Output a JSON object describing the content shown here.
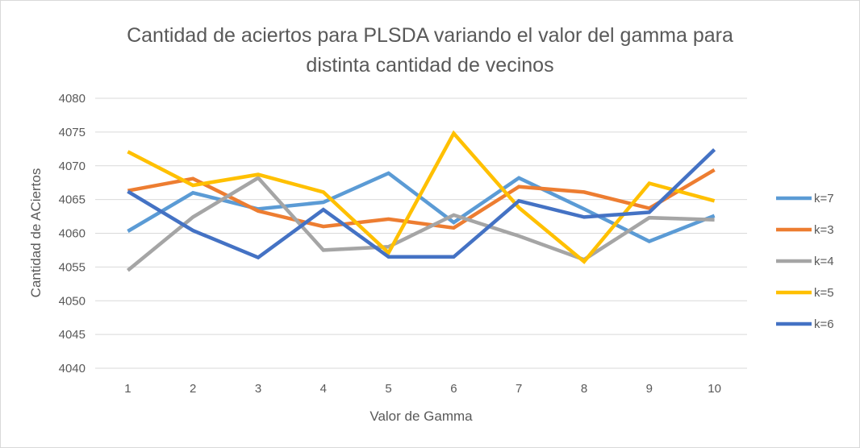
{
  "chart_data": {
    "type": "line",
    "title_line1": "Cantidad de aciertos para PLSDA variando el valor del gamma para",
    "title_line2": "distinta cantidad de vecinos",
    "xlabel": "Valor de Gamma",
    "ylabel": "Cantidad de ACiertos",
    "x": [
      1,
      2,
      3,
      4,
      5,
      6,
      7,
      8,
      9,
      10
    ],
    "ylim": [
      4040,
      4080
    ],
    "yticks": [
      4040,
      4045,
      4050,
      4055,
      4060,
      4065,
      4070,
      4075,
      4080
    ],
    "grid": true,
    "legend_position": "right",
    "series": [
      {
        "name": "k=7",
        "color": "#5b9bd5",
        "values": [
          4060.3,
          4066.0,
          4063.6,
          4064.6,
          4068.9,
          4061.6,
          4068.2,
          4063.6,
          4058.8,
          4062.6
        ]
      },
      {
        "name": "k=3",
        "color": "#ed7d31",
        "values": [
          4066.3,
          4068.1,
          4063.3,
          4061.0,
          4062.1,
          4060.8,
          4066.9,
          4066.1,
          4063.7,
          4069.4
        ]
      },
      {
        "name": "k=4",
        "color": "#a5a5a5",
        "values": [
          4054.5,
          4062.4,
          4068.2,
          4057.5,
          4058.0,
          4062.7,
          4059.6,
          4056.1,
          4062.3,
          4062.0
        ]
      },
      {
        "name": "k=5",
        "color": "#ffc000",
        "values": [
          4072.1,
          4067.1,
          4068.7,
          4066.1,
          4057.1,
          4074.8,
          4063.8,
          4055.8,
          4067.4,
          4064.8
        ]
      },
      {
        "name": "k=6",
        "color": "#4472c4",
        "values": [
          4066.2,
          4060.4,
          4056.4,
          4063.5,
          4056.5,
          4056.5,
          4064.8,
          4062.4,
          4063.1,
          4072.4
        ]
      }
    ]
  }
}
